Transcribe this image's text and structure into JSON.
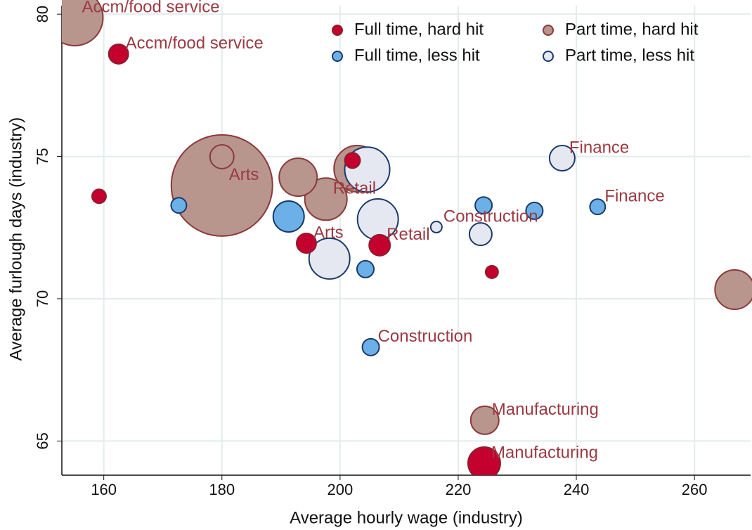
{
  "chart_data": {
    "type": "scatter",
    "xlabel": "Average hourly wage (industry)",
    "ylabel": "Average furlough days (industry)",
    "xlim": [
      152.9,
      269.5
    ],
    "ylim": [
      63.8,
      80.3
    ],
    "xticks": [
      160,
      180,
      200,
      220,
      240,
      260
    ],
    "yticks": [
      65,
      70,
      75,
      80
    ],
    "grid": true,
    "legend": "top",
    "series": [
      {
        "name": "Full time, hard hit",
        "color": "#c4002f",
        "stroke": "#8e1f2c",
        "x": [
          162.5,
          159.2,
          202.1,
          194.3,
          206.7,
          225.7,
          224.4
        ],
        "values": [
          78.6,
          73.6,
          74.86,
          71.95,
          71.88,
          70.94,
          64.22
        ],
        "sizes": [
          49,
          25,
          30,
          49,
          56,
          20,
          132
        ],
        "labels": [
          "Accm/food service",
          null,
          null,
          "Arts",
          "Retail",
          null,
          "Manufacturing"
        ]
      },
      {
        "name": "Full time, less hit",
        "color": "#6cb0e8",
        "stroke": "#1a3a6a",
        "x": [
          172.7,
          191.3,
          204.3,
          205.2,
          224.3,
          232.9,
          243.6
        ],
        "values": [
          73.28,
          72.89,
          71.04,
          68.3,
          73.28,
          73.09,
          73.23
        ],
        "sizes": [
          30,
          121,
          36,
          36,
          36,
          36,
          30
        ],
        "labels": [
          null,
          null,
          null,
          "Construction",
          null,
          null,
          "Finance"
        ]
      },
      {
        "name": "Part time, hard hit",
        "color": "#b8958d",
        "stroke": "#8b3a3a",
        "x": [
          155.1,
          180.0,
          180.0,
          192.9,
          197.6,
          202.9,
          266.8,
          224.5
        ],
        "values": [
          79.88,
          74.99,
          73.98,
          74.27,
          73.5,
          74.57,
          70.32,
          65.73
        ],
        "sizes": [
          400,
          72,
          1296,
          182,
          225,
          272,
          196,
          100
        ],
        "labels": [
          "Accm/food service",
          null,
          "Arts",
          null,
          "Retail",
          null,
          null,
          "Manufacturing"
        ]
      },
      {
        "name": "Part time, less hit",
        "color": "#e6e8f1",
        "stroke": "#1a3a6a",
        "x": [
          204.6,
          206.4,
          198.2,
          216.3,
          223.8,
          237.6
        ],
        "values": [
          74.54,
          72.79,
          71.41,
          72.52,
          72.27,
          74.94
        ],
        "sizes": [
          256,
          210,
          210,
          16,
          64,
          81
        ],
        "labels": [
          null,
          null,
          null,
          "Construction",
          null,
          "Finance"
        ]
      }
    ]
  }
}
